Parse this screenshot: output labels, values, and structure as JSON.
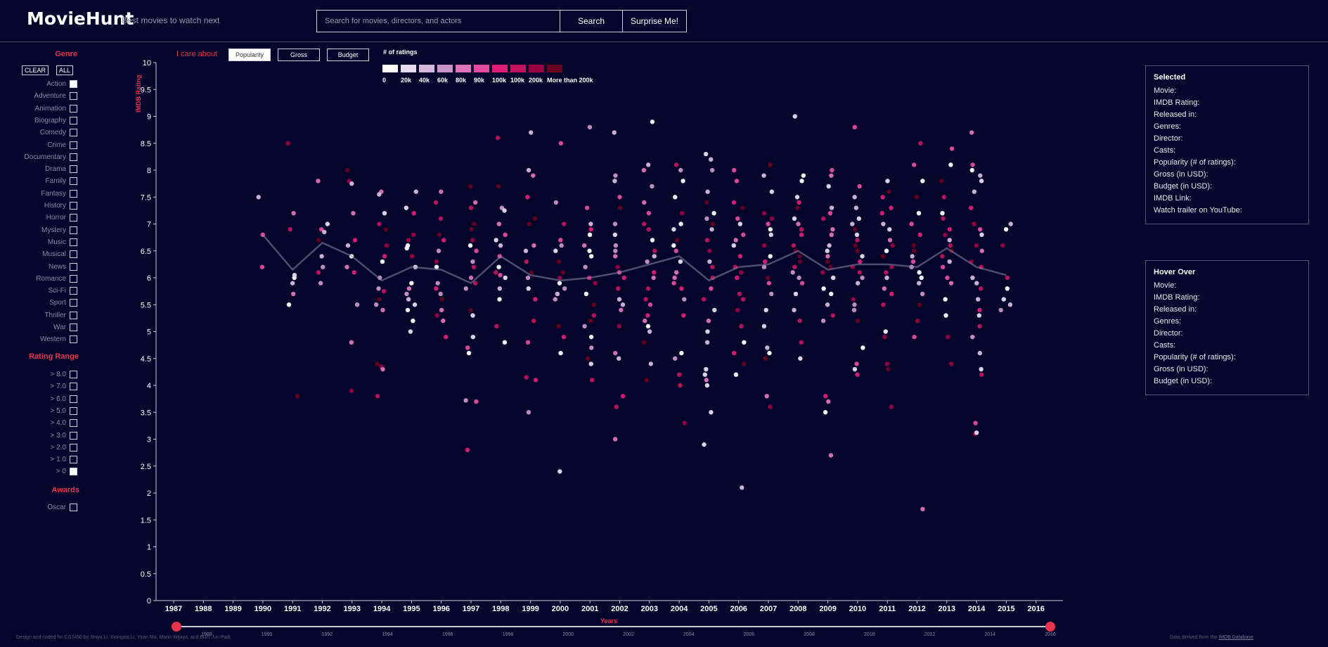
{
  "header": {
    "title": "MovieHunt",
    "tagline": "Best movies to watch next",
    "search_placeholder": "Search for movies, directors, and actors",
    "search_label": "Search",
    "surprise_label": "Surprise Me!"
  },
  "sidebar": {
    "genre_title": "Genre",
    "clear_label": "CLEAR",
    "all_label": "ALL",
    "genres": [
      {
        "label": "Action",
        "checked": true
      },
      {
        "label": "Adventure",
        "checked": false
      },
      {
        "label": "Animation",
        "checked": false
      },
      {
        "label": "Biography",
        "checked": false
      },
      {
        "label": "Comedy",
        "checked": false
      },
      {
        "label": "Crime",
        "checked": false
      },
      {
        "label": "Documentary",
        "checked": false
      },
      {
        "label": "Drama",
        "checked": false
      },
      {
        "label": "Family",
        "checked": false
      },
      {
        "label": "Fantasy",
        "checked": false
      },
      {
        "label": "History",
        "checked": false
      },
      {
        "label": "Horror",
        "checked": false
      },
      {
        "label": "Mystery",
        "checked": false
      },
      {
        "label": "Music",
        "checked": false
      },
      {
        "label": "Musical",
        "checked": false
      },
      {
        "label": "News",
        "checked": false
      },
      {
        "label": "Romance",
        "checked": false
      },
      {
        "label": "Sci-Fi",
        "checked": false
      },
      {
        "label": "Sport",
        "checked": false
      },
      {
        "label": "Thriller",
        "checked": false
      },
      {
        "label": "War",
        "checked": false
      },
      {
        "label": "Western",
        "checked": false
      }
    ],
    "rating_title": "Rating Range",
    "ratings": [
      {
        "label": "> 8.0",
        "checked": false
      },
      {
        "label": "> 7.0",
        "checked": false
      },
      {
        "label": "> 6.0",
        "checked": false
      },
      {
        "label": "> 5.0",
        "checked": false
      },
      {
        "label": "> 4.0",
        "checked": false
      },
      {
        "label": "> 3.0",
        "checked": false
      },
      {
        "label": "> 2.0",
        "checked": false
      },
      {
        "label": "> 1.0",
        "checked": false
      },
      {
        "label": "> 0",
        "checked": true
      }
    ],
    "awards_title": "Awards",
    "awards": [
      {
        "label": "Oscar",
        "checked": false
      }
    ]
  },
  "controls": {
    "care_label": "I care about",
    "options": [
      "Popularity",
      "Gross",
      "Budget"
    ],
    "active": "Popularity",
    "legend_title": "# of ratings",
    "legend": [
      {
        "label": "0",
        "color": "#ffffff"
      },
      {
        "label": "20k",
        "color": "#e6dcef"
      },
      {
        "label": "40k",
        "color": "#d4b9dc"
      },
      {
        "label": "60k",
        "color": "#c994c7"
      },
      {
        "label": "80k",
        "color": "#dd73b8"
      },
      {
        "label": "90k",
        "color": "#e34aa0"
      },
      {
        "label": "100k",
        "color": "#dd1c77"
      },
      {
        "label": "100k",
        "color": "#c0125f"
      },
      {
        "label": "200k",
        "color": "#980043"
      },
      {
        "label": "More than 200k",
        "color": "#67001f"
      }
    ]
  },
  "chart_data": {
    "type": "scatter",
    "ylabel": "IMDB Rating",
    "xlabel": "Years",
    "ylim": [
      0,
      10
    ],
    "yticks": [
      "0",
      "0.5",
      "1",
      "1.5",
      "2",
      "2.5",
      "3",
      "3.5",
      "4",
      "4.5",
      "5",
      "5.5",
      "6",
      "6.5",
      "7",
      "7.5",
      "8",
      "8.5",
      "9",
      "9.5",
      "10"
    ],
    "xticks": [
      "1987",
      "1988",
      "1989",
      "1990",
      "1991",
      "1992",
      "1993",
      "1994",
      "1995",
      "1996",
      "1997",
      "1998",
      "1999",
      "2000",
      "2001",
      "2002",
      "2003",
      "2004",
      "2005",
      "2006",
      "2007",
      "2008",
      "2009",
      "2010",
      "2011",
      "2012",
      "2013",
      "2014",
      "2015",
      "2016"
    ],
    "average_line": {
      "years": [
        1990,
        1991,
        1992,
        1993,
        1994,
        1995,
        1996,
        1997,
        1998,
        1999,
        2000,
        2001,
        2002,
        2003,
        2004,
        2005,
        2006,
        2007,
        2008,
        2009,
        2010,
        2011,
        2012,
        2013,
        2014,
        2015
      ],
      "values": [
        6.8,
        6.15,
        6.65,
        6.4,
        5.95,
        6.2,
        6.15,
        5.9,
        6.4,
        6.05,
        5.95,
        6.0,
        6.1,
        6.25,
        6.4,
        5.95,
        6.2,
        6.25,
        6.5,
        6.15,
        6.25,
        6.25,
        6.2,
        6.55,
        6.2,
        6.05
      ]
    },
    "points_by_year": [
      {
        "year": 1990,
        "ratings": [
          6.8,
          7.5,
          6.2
        ]
      },
      {
        "year": 1991,
        "ratings": [
          8.5,
          7.2,
          6.9,
          6.0,
          5.9,
          6.05,
          5.7,
          5.5,
          3.8
        ]
      },
      {
        "year": 1992,
        "ratings": [
          7.8,
          7.0,
          6.9,
          6.85,
          6.7,
          6.4,
          6.2,
          6.1,
          5.9
        ]
      },
      {
        "year": 1993,
        "ratings": [
          8.0,
          7.8,
          7.75,
          7.2,
          6.7,
          6.6,
          6.4,
          6.2,
          6.1,
          5.5,
          4.8,
          3.9
        ]
      },
      {
        "year": 1994,
        "ratings": [
          7.6,
          7.55,
          7.2,
          7.0,
          6.9,
          6.6,
          6.4,
          6.3,
          6.0,
          5.8,
          5.75,
          5.6,
          5.5,
          5.4,
          4.4,
          4.35,
          4.3,
          3.8
        ]
      },
      {
        "year": 1995,
        "ratings": [
          7.6,
          7.3,
          7.2,
          6.8,
          6.7,
          6.6,
          6.55,
          6.4,
          6.2,
          5.9,
          5.8,
          5.7,
          5.6,
          5.5,
          5.4,
          5.2,
          5.0
        ]
      },
      {
        "year": 1996,
        "ratings": [
          7.6,
          7.4,
          7.1,
          6.8,
          6.7,
          6.5,
          6.3,
          6.2,
          5.9,
          5.8,
          5.7,
          5.6,
          5.4,
          5.3,
          5.2,
          4.9
        ]
      },
      {
        "year": 1997,
        "ratings": [
          7.7,
          7.4,
          7.3,
          7.0,
          6.9,
          6.7,
          6.6,
          6.5,
          6.3,
          6.2,
          6.0,
          5.9,
          5.8,
          5.4,
          5.3,
          4.9,
          4.7,
          4.6,
          3.7,
          3.72,
          2.8
        ]
      },
      {
        "year": 1998,
        "ratings": [
          8.6,
          7.7,
          7.3,
          7.25,
          7.0,
          6.8,
          6.7,
          6.6,
          6.4,
          6.2,
          6.1,
          6.05,
          6.0,
          5.8,
          5.6,
          5.1,
          4.8
        ]
      },
      {
        "year": 1999,
        "ratings": [
          8.7,
          8.0,
          7.9,
          7.5,
          7.1,
          7.0,
          6.6,
          6.5,
          6.3,
          6.1,
          6.0,
          5.8,
          5.6,
          5.2,
          4.8,
          4.15,
          4.1,
          3.5
        ]
      },
      {
        "year": 2000,
        "ratings": [
          8.5,
          7.4,
          7.0,
          6.7,
          6.6,
          6.5,
          6.3,
          6.1,
          6.0,
          5.9,
          5.8,
          5.7,
          5.6,
          5.1,
          4.9,
          4.6,
          2.4
        ]
      },
      {
        "year": 2001,
        "ratings": [
          8.8,
          7.3,
          7.0,
          6.9,
          6.8,
          6.6,
          6.5,
          6.4,
          6.2,
          6.0,
          5.9,
          5.7,
          5.5,
          5.3,
          5.2,
          5.1,
          4.9,
          4.7,
          4.5,
          4.4,
          4.1
        ]
      },
      {
        "year": 2002,
        "ratings": [
          8.7,
          7.9,
          7.8,
          7.5,
          7.3,
          7.0,
          6.8,
          6.6,
          6.5,
          6.4,
          6.2,
          6.1,
          6.0,
          5.8,
          5.6,
          5.5,
          5.4,
          5.1,
          4.6,
          4.5,
          3.8,
          3.6,
          3.0
        ]
      },
      {
        "year": 2003,
        "ratings": [
          8.9,
          8.1,
          8.0,
          7.7,
          7.4,
          7.2,
          7.0,
          6.9,
          6.7,
          6.5,
          6.4,
          6.3,
          6.1,
          6.0,
          5.8,
          5.6,
          5.5,
          5.3,
          5.2,
          5.1,
          5.0,
          4.8,
          4.4,
          4.1
        ]
      },
      {
        "year": 2004,
        "ratings": [
          8.1,
          8.0,
          7.8,
          7.5,
          7.2,
          7.0,
          6.9,
          6.7,
          6.6,
          6.5,
          6.3,
          6.1,
          6.0,
          5.9,
          5.8,
          5.6,
          5.3,
          4.6,
          4.5,
          4.2,
          4.0,
          3.3
        ]
      },
      {
        "year": 2005,
        "ratings": [
          8.3,
          8.2,
          8.0,
          7.6,
          7.4,
          7.2,
          7.1,
          7.0,
          6.9,
          6.7,
          6.5,
          6.3,
          6.2,
          6.0,
          5.8,
          5.6,
          5.4,
          5.2,
          5.0,
          4.8,
          4.3,
          4.2,
          4.1,
          4.0,
          3.5,
          2.9
        ]
      },
      {
        "year": 2006,
        "ratings": [
          8.0,
          7.8,
          7.4,
          7.3,
          7.1,
          7.0,
          6.8,
          6.7,
          6.6,
          6.4,
          6.2,
          6.1,
          6.0,
          5.7,
          5.6,
          5.4,
          5.1,
          4.8,
          4.6,
          4.4,
          4.2,
          2.1
        ]
      },
      {
        "year": 2007,
        "ratings": [
          8.1,
          7.9,
          7.6,
          7.2,
          7.1,
          7.0,
          6.9,
          6.8,
          6.6,
          6.4,
          6.3,
          6.2,
          6.0,
          5.9,
          5.7,
          5.4,
          5.1,
          4.7,
          4.6,
          4.5,
          3.8,
          3.6
        ]
      },
      {
        "year": 2008,
        "ratings": [
          9.0,
          7.9,
          7.8,
          7.5,
          7.4,
          7.3,
          7.1,
          7.0,
          6.9,
          6.8,
          6.6,
          6.5,
          6.4,
          6.3,
          6.2,
          6.1,
          6.0,
          5.9,
          5.7,
          5.4,
          5.2,
          4.8,
          4.5
        ]
      },
      {
        "year": 2009,
        "ratings": [
          8.0,
          7.9,
          7.7,
          7.3,
          7.2,
          7.1,
          6.9,
          6.8,
          6.6,
          6.5,
          6.4,
          6.3,
          6.2,
          6.1,
          6.0,
          5.8,
          5.7,
          5.5,
          5.3,
          5.2,
          3.8,
          3.7,
          3.5,
          2.7
        ]
      },
      {
        "year": 2010,
        "ratings": [
          8.8,
          7.7,
          7.5,
          7.3,
          7.1,
          7.0,
          6.9,
          6.8,
          6.7,
          6.6,
          6.5,
          6.4,
          6.3,
          6.2,
          6.1,
          6.0,
          5.9,
          5.6,
          5.5,
          5.4,
          5.2,
          4.7,
          4.4,
          4.3,
          4.2
        ]
      },
      {
        "year": 2011,
        "ratings": [
          7.8,
          7.6,
          7.5,
          7.3,
          7.2,
          7.0,
          6.9,
          6.7,
          6.6,
          6.5,
          6.4,
          6.2,
          6.1,
          6.0,
          5.8,
          5.7,
          5.5,
          5.0,
          4.9,
          4.4,
          4.3,
          3.6
        ]
      },
      {
        "year": 2012,
        "ratings": [
          8.5,
          8.1,
          7.8,
          7.5,
          7.2,
          7.0,
          6.8,
          6.6,
          6.5,
          6.4,
          6.3,
          6.2,
          6.1,
          6.0,
          5.9,
          5.7,
          5.5,
          5.2,
          4.9,
          1.7
        ]
      },
      {
        "year": 2013,
        "ratings": [
          8.4,
          8.1,
          7.8,
          7.5,
          7.2,
          7.1,
          6.9,
          6.8,
          6.7,
          6.6,
          6.5,
          6.4,
          6.3,
          6.2,
          6.0,
          5.9,
          5.6,
          5.3,
          4.9,
          4.4
        ]
      },
      {
        "year": 2014,
        "ratings": [
          8.7,
          8.1,
          8.0,
          7.9,
          7.8,
          7.6,
          7.3,
          7.0,
          6.9,
          6.8,
          6.6,
          6.5,
          6.3,
          6.2,
          6.0,
          5.9,
          5.8,
          5.6,
          5.4,
          5.3,
          5.1,
          4.9,
          4.6,
          4.3,
          4.2,
          3.3,
          3.1,
          3.12
        ]
      },
      {
        "year": 2015,
        "ratings": [
          7.0,
          6.9,
          6.6,
          6.0,
          5.8,
          5.6,
          5.5,
          5.4
        ]
      }
    ]
  },
  "slider": {
    "years": [
      "1988",
      "1990",
      "1992",
      "1994",
      "1996",
      "1998",
      "2000",
      "2002",
      "2004",
      "2006",
      "2008",
      "2010",
      "2012",
      "2014",
      "2016"
    ],
    "start": 1987,
    "end": 2016,
    "accent": "#e8344f"
  },
  "selected": {
    "title": "Selected",
    "rows": [
      "Movie:",
      "IMDB Rating:",
      "Released in:",
      "Genres:",
      "Director:",
      "Casts:",
      "Popularity (# of ratings):",
      "Gross (in USD):",
      "Budget (in USD):",
      "IMDB Link:",
      "Watch trailer on YouTube:"
    ]
  },
  "hover": {
    "title": "Hover Over",
    "rows": [
      "Movie:",
      "IMDB Rating:",
      "Released in:",
      "Genres:",
      "Director:",
      "Casts:",
      "Popularity (# of ratings):",
      "Gross (in USD):",
      "Budget (in USD):"
    ]
  },
  "footer": {
    "credits": "Design and coded for CS7450 by Xinyu Li, Xiongxia Li, Yiran Ma, Mario Wijaya, and Bum Jun Park",
    "source_prefix": "Data derived from the",
    "source_link": "IMDB Database"
  }
}
